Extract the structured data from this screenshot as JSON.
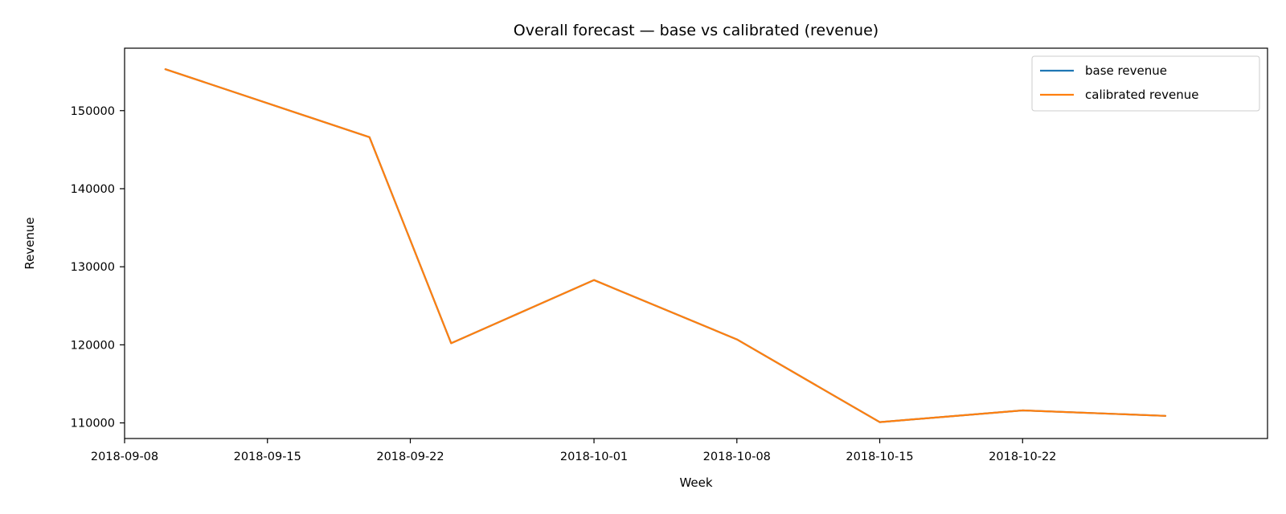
{
  "chart_data": {
    "type": "line",
    "title": "Overall forecast — base vs calibrated (revenue)",
    "xlabel": "Week",
    "ylabel": "Revenue",
    "x": [
      "2018-09-10",
      "2018-09-20",
      "2018-09-24",
      "2018-10-01",
      "2018-10-08",
      "2018-10-15",
      "2018-10-22",
      "2018-10-29"
    ],
    "xlim": [
      "2018-09-08",
      "2018-11-03"
    ],
    "ylim": [
      108000,
      158000
    ],
    "xticks": [
      "2018-09-08",
      "2018-09-15",
      "2018-09-22",
      "2018-10-01",
      "2018-10-08",
      "2018-10-15",
      "2018-10-22"
    ],
    "yticks": [
      110000,
      120000,
      130000,
      140000,
      150000
    ],
    "series": [
      {
        "name": "base revenue",
        "color": "#1f77b4",
        "values": [
          155300,
          146600,
          120200,
          128300,
          120700,
          110100,
          111600,
          110900
        ]
      },
      {
        "name": "calibrated revenue",
        "color": "#ff7f0e",
        "values": [
          155300,
          146600,
          120200,
          128300,
          120700,
          110100,
          111600,
          110900
        ]
      }
    ],
    "legend": "top-right",
    "grid": false
  }
}
